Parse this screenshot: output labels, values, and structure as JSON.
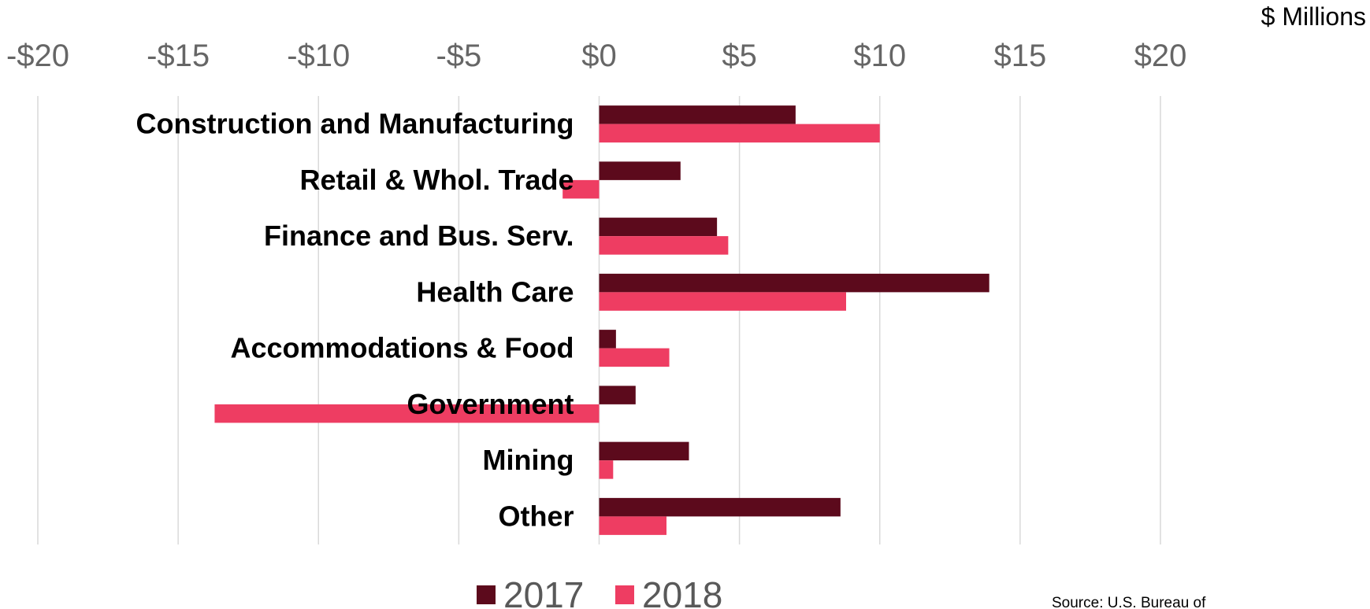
{
  "chart_data": {
    "type": "bar",
    "orientation": "horizontal",
    "units_label": "$ Millions",
    "categories": [
      "Construction and Manufacturing",
      "Retail & Whol. Trade",
      "Finance and Bus. Serv.",
      "Health Care",
      "Accommodations & Food",
      "Government",
      "Mining",
      "Other"
    ],
    "series": [
      {
        "name": "2017",
        "color": "#5c0a1c",
        "values": [
          7.0,
          2.9,
          4.2,
          13.9,
          0.6,
          1.3,
          3.2,
          8.6
        ]
      },
      {
        "name": "2018",
        "color": "#ee3d62",
        "values": [
          10.0,
          -1.3,
          4.6,
          8.8,
          2.5,
          -13.7,
          0.5,
          2.4
        ]
      }
    ],
    "xlim": [
      -20,
      20
    ],
    "xticks": [
      -20,
      -15,
      -10,
      -5,
      0,
      5,
      10,
      15,
      20
    ],
    "xtick_labels": [
      "-$20",
      "-$15",
      "-$10",
      "-$5",
      "$0",
      "$5",
      "$10",
      "$15",
      "$20"
    ],
    "grid": true,
    "legend_position": "bottom",
    "source_note": "Source: U.S. Bureau of"
  }
}
